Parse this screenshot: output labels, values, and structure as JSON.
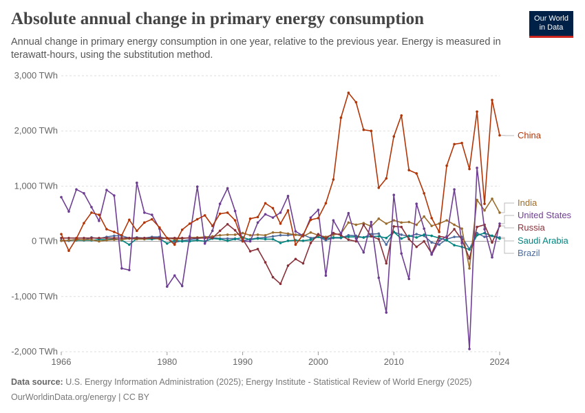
{
  "header": {
    "title": "Absolute annual change in primary energy consumption",
    "subtitle": "Annual change in primary energy consumption in one year, relative to the previous year. Energy is measured in terawatt-hours, using the substitution method."
  },
  "logo": {
    "line1": "Our World",
    "line2": "in Data"
  },
  "footer": {
    "source_label": "Data source:",
    "source_text": "U.S. Energy Information Administration (2025); Energy Institute - Statistical Review of World Energy (2025)",
    "url_text": "OurWorldinData.org/energy | CC BY"
  },
  "colors": {
    "logo_bg": "#002147",
    "logo_accent": "#ce261e",
    "text": "#555555"
  },
  "chart_data": {
    "type": "line",
    "title": "Absolute annual change in primary energy consumption",
    "xlabel": "",
    "ylabel": "",
    "unit": "TWh",
    "xlim": [
      1966,
      2024
    ],
    "ylim": [
      -2000,
      3000
    ],
    "y_ticks": [
      -2000,
      -1000,
      0,
      1000,
      2000,
      3000
    ],
    "y_tick_labels": [
      "-2,000 TWh",
      "-1,000 TWh",
      "0 TWh",
      "1,000 TWh",
      "2,000 TWh",
      "3,000 TWh"
    ],
    "x_ticks": [
      1966,
      1980,
      1990,
      2000,
      2010,
      2024
    ],
    "x_tick_labels": [
      "1966",
      "1980",
      "1990",
      "2000",
      "2010",
      "2024"
    ],
    "grid": true,
    "legend": "right, labels at line ends",
    "x": [
      1966,
      1967,
      1968,
      1969,
      1970,
      1971,
      1972,
      1973,
      1974,
      1975,
      1976,
      1977,
      1978,
      1979,
      1980,
      1981,
      1982,
      1983,
      1984,
      1985,
      1986,
      1987,
      1988,
      1989,
      1990,
      1991,
      1992,
      1993,
      1994,
      1995,
      1996,
      1997,
      1998,
      1999,
      2000,
      2001,
      2002,
      2003,
      2004,
      2005,
      2006,
      2007,
      2008,
      2009,
      2010,
      2011,
      2012,
      2013,
      2014,
      2015,
      2016,
      2017,
      2018,
      2019,
      2020,
      2021,
      2022,
      2023,
      2024
    ],
    "series": [
      {
        "name": "China",
        "color": "#b13507",
        "values": [
          130,
          -170,
          50,
          330,
          520,
          480,
          220,
          170,
          110,
          390,
          190,
          340,
          400,
          250,
          60,
          -60,
          210,
          320,
          400,
          470,
          280,
          500,
          520,
          380,
          0,
          410,
          440,
          690,
          600,
          320,
          560,
          -60,
          120,
          390,
          420,
          690,
          1120,
          2240,
          2690,
          2520,
          2020,
          2000,
          970,
          1140,
          1900,
          2280,
          1290,
          1230,
          870,
          420,
          170,
          1370,
          1760,
          1780,
          1310,
          2350,
          680,
          2560,
          1920
        ]
      },
      {
        "name": "India",
        "color": "#9a6c2e",
        "values": [
          10,
          20,
          30,
          30,
          30,
          0,
          20,
          30,
          30,
          50,
          40,
          40,
          60,
          40,
          60,
          40,
          50,
          70,
          70,
          80,
          90,
          110,
          120,
          120,
          150,
          110,
          120,
          110,
          160,
          160,
          140,
          120,
          90,
          160,
          110,
          80,
          120,
          140,
          340,
          300,
          330,
          270,
          410,
          320,
          380,
          340,
          350,
          300,
          450,
          280,
          320,
          380,
          300,
          230,
          -490,
          750,
          560,
          770,
          520
        ]
      },
      {
        "name": "United States",
        "color": "#6d3e91",
        "values": [
          800,
          540,
          940,
          870,
          620,
          370,
          930,
          830,
          -490,
          -520,
          1060,
          520,
          480,
          230,
          -820,
          -620,
          -810,
          90,
          990,
          -40,
          190,
          680,
          960,
          550,
          0,
          0,
          340,
          490,
          430,
          520,
          820,
          180,
          100,
          430,
          570,
          -620,
          380,
          140,
          510,
          50,
          -200,
          350,
          -660,
          -1290,
          840,
          -220,
          -680,
          680,
          230,
          -240,
          10,
          90,
          940,
          -30,
          -1950,
          1330,
          220,
          -290,
          320
        ]
      },
      {
        "name": "Russia",
        "color": "#883039",
        "values": [
          60,
          60,
          60,
          60,
          60,
          60,
          60,
          60,
          60,
          60,
          60,
          60,
          60,
          60,
          60,
          60,
          60,
          60,
          60,
          60,
          60,
          190,
          310,
          200,
          40,
          -180,
          -140,
          -380,
          -650,
          -770,
          -440,
          -320,
          -400,
          -30,
          130,
          50,
          150,
          110,
          30,
          0,
          300,
          90,
          40,
          -400,
          270,
          260,
          40,
          -100,
          0,
          -220,
          90,
          70,
          220,
          30,
          -310,
          260,
          300,
          -20,
          280
        ]
      },
      {
        "name": "Saudi Arabia",
        "color": "#00847e",
        "values": [
          10,
          20,
          20,
          20,
          20,
          30,
          30,
          40,
          20,
          -60,
          50,
          40,
          40,
          50,
          -40,
          20,
          0,
          0,
          20,
          0,
          50,
          40,
          10,
          40,
          70,
          30,
          50,
          40,
          40,
          -30,
          10,
          20,
          10,
          30,
          80,
          50,
          70,
          70,
          80,
          80,
          70,
          90,
          90,
          60,
          170,
          50,
          100,
          70,
          120,
          100,
          60,
          20,
          -70,
          -100,
          -150,
          110,
          150,
          100,
          50
        ]
      },
      {
        "name": "Brazil",
        "color": "#4c6a9c",
        "values": [
          20,
          10,
          40,
          20,
          70,
          50,
          80,
          100,
          100,
          60,
          70,
          60,
          80,
          80,
          50,
          -20,
          10,
          30,
          50,
          70,
          70,
          50,
          50,
          50,
          10,
          40,
          60,
          70,
          90,
          110,
          110,
          120,
          120,
          60,
          80,
          20,
          60,
          60,
          110,
          100,
          70,
          130,
          140,
          -60,
          170,
          120,
          90,
          130,
          100,
          -20,
          -60,
          40,
          80,
          80,
          -140,
          150,
          80,
          100,
          70
        ]
      }
    ]
  }
}
